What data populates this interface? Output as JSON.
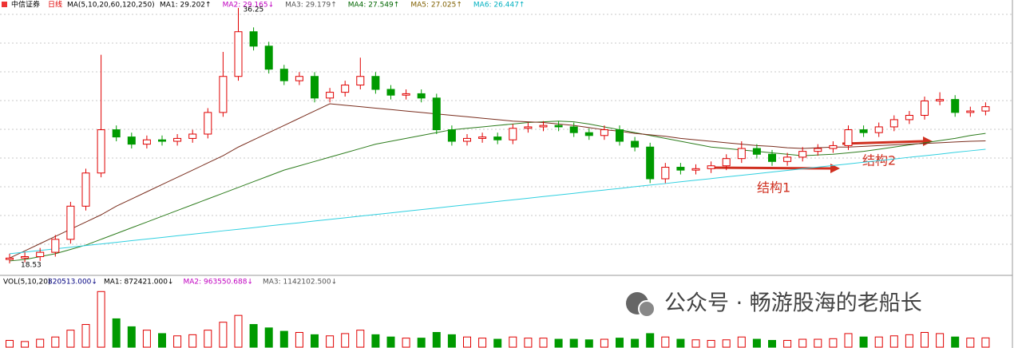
{
  "chart_data": {
    "type": "candlestick",
    "stock_name": "中信证券",
    "period": "日线",
    "ma_params": "MA(5,10,20,60,120,250)",
    "ma_labels": [
      "MA1: 29.202↑",
      "MA2: 29.165↓",
      "MA3: 29.179↑",
      "MA4: 27.549↑",
      "MA5: 27.025↑",
      "MA6: 26.447↑"
    ],
    "ma_label_colors": [
      "#000000",
      "#c000c0",
      "#555555",
      "#006600",
      "#806000",
      "#00b0c0"
    ],
    "annotations": [
      "36.25",
      "18.53",
      "结构1",
      "结构2"
    ],
    "volume_header": "VOL(5,10,20)",
    "volume_value_label": "820513.000↓",
    "volume_ma_labels": [
      "MA1: 872421.000↓",
      "MA2: 963550.688↓",
      "MA3: 1142102.500↓"
    ],
    "watermark": "公众号 · 畅游股海的老船长",
    "up_color": "#e00000",
    "down_color": "#009a00",
    "ylim": [
      17.7,
      36.8
    ],
    "volume_ylim": [
      0,
      5200000
    ],
    "open": [
      18.8,
      18.9,
      19.0,
      19.3,
      20.2,
      22.5,
      24.8,
      27.8,
      27.3,
      26.8,
      27.1,
      27.0,
      27.2,
      27.5,
      29.0,
      31.5,
      34.6,
      33.6,
      32.0,
      31.2,
      31.5,
      30.0,
      30.4,
      30.9,
      31.5,
      30.6,
      30.2,
      30.3,
      30.0,
      27.8,
      27.0,
      27.2,
      27.3,
      27.1,
      27.9,
      28.0,
      28.1,
      28.0,
      27.6,
      27.4,
      27.8,
      27.0,
      26.6,
      24.4,
      25.2,
      25.0,
      25.1,
      25.3,
      25.8,
      26.5,
      26.1,
      25.6,
      25.9,
      26.3,
      26.5,
      26.7,
      27.8,
      27.6,
      28.0,
      28.5,
      28.8,
      29.8,
      29.9,
      29.0,
      29.1
    ],
    "high": [
      19.2,
      19.3,
      19.6,
      20.5,
      22.8,
      25.1,
      33.0,
      28.1,
      27.6,
      27.4,
      27.4,
      27.5,
      27.8,
      29.3,
      33.2,
      36.25,
      34.9,
      33.9,
      32.3,
      31.8,
      31.8,
      30.7,
      31.2,
      32.8,
      31.8,
      30.9,
      30.6,
      30.6,
      30.3,
      28.1,
      27.5,
      27.6,
      27.6,
      28.2,
      28.3,
      28.4,
      28.4,
      28.3,
      27.9,
      28.1,
      28.1,
      27.3,
      26.9,
      25.5,
      25.5,
      25.4,
      25.6,
      26.1,
      27.0,
      26.8,
      26.4,
      26.2,
      26.6,
      26.8,
      27.0,
      28.1,
      28.1,
      28.3,
      28.8,
      29.1,
      30.1,
      30.4,
      30.2,
      29.4,
      29.7
    ],
    "low": [
      18.53,
      18.6,
      18.7,
      19.0,
      19.9,
      22.2,
      24.5,
      27.0,
      26.5,
      26.5,
      26.7,
      26.7,
      26.9,
      27.2,
      28.7,
      31.2,
      33.3,
      31.7,
      30.9,
      30.9,
      29.7,
      29.7,
      30.1,
      30.6,
      30.3,
      29.9,
      29.9,
      29.7,
      27.5,
      26.7,
      26.7,
      26.9,
      26.8,
      26.8,
      27.6,
      27.7,
      27.7,
      27.3,
      27.1,
      27.1,
      26.7,
      26.3,
      24.1,
      24.1,
      24.7,
      24.7,
      24.8,
      25.0,
      25.5,
      25.8,
      25.3,
      25.3,
      25.6,
      26.0,
      26.2,
      26.4,
      27.3,
      27.3,
      27.7,
      28.2,
      28.5,
      29.5,
      28.7,
      28.7,
      28.8
    ],
    "close": [
      18.9,
      19.0,
      19.3,
      20.2,
      22.5,
      24.8,
      27.8,
      27.3,
      26.8,
      27.1,
      27.0,
      27.2,
      27.5,
      29.0,
      31.5,
      34.6,
      33.6,
      32.0,
      31.2,
      31.5,
      30.0,
      30.4,
      30.9,
      31.5,
      30.6,
      30.2,
      30.3,
      30.0,
      27.8,
      27.0,
      27.2,
      27.3,
      27.1,
      27.9,
      28.0,
      28.1,
      28.0,
      27.6,
      27.4,
      27.8,
      27.0,
      26.6,
      24.4,
      25.2,
      25.0,
      25.1,
      25.3,
      25.8,
      26.5,
      26.1,
      25.6,
      25.9,
      26.3,
      26.5,
      26.7,
      27.8,
      27.6,
      28.0,
      28.5,
      28.8,
      29.8,
      29.9,
      29.0,
      29.1,
      29.4
    ],
    "volume": [
      600000,
      500000,
      700000,
      900000,
      1500000,
      2000000,
      4900000,
      2500000,
      1800000,
      1500000,
      1200000,
      1000000,
      1100000,
      1500000,
      2200000,
      2800000,
      2000000,
      1700000,
      1400000,
      1300000,
      1100000,
      1000000,
      1200000,
      1500000,
      1100000,
      900000,
      800000,
      800000,
      1300000,
      1100000,
      900000,
      800000,
      700000,
      900000,
      800000,
      800000,
      700000,
      700000,
      650000,
      700000,
      800000,
      700000,
      1200000,
      900000,
      700000,
      650000,
      600000,
      650000,
      900000,
      700000,
      600000,
      600000,
      700000,
      700000,
      750000,
      1200000,
      900000,
      900000,
      1000000,
      1100000,
      1300000,
      1200000,
      900000,
      800000,
      820513
    ],
    "ma_series": [
      {
        "color": "#2e7d1e",
        "values": [
          18.7,
          18.8,
          19.0,
          19.2,
          19.5,
          19.8,
          20.2,
          20.6,
          21.0,
          21.4,
          21.8,
          22.2,
          22.6,
          23.0,
          23.4,
          23.8,
          24.2,
          24.6,
          25.0,
          25.3,
          25.6,
          25.9,
          26.2,
          26.5,
          26.8,
          27.0,
          27.2,
          27.4,
          27.6,
          27.8,
          27.9,
          28.0,
          28.1,
          28.2,
          28.3,
          28.35,
          28.4,
          28.35,
          28.2,
          28.0,
          27.8,
          27.6,
          27.4,
          27.2,
          27.0,
          26.8,
          26.6,
          26.5,
          26.4,
          26.3,
          26.2,
          26.1,
          26.0,
          26.05,
          26.1,
          26.2,
          26.3,
          26.45,
          26.6,
          26.75,
          26.9,
          27.05,
          27.2,
          27.4,
          27.55
        ]
      },
      {
        "color": "#7a2e1e",
        "values": [
          18.9,
          19.4,
          19.9,
          20.4,
          20.9,
          21.4,
          21.9,
          22.5,
          23.0,
          23.5,
          24.0,
          24.5,
          25.0,
          25.5,
          26.0,
          26.6,
          27.1,
          27.6,
          28.1,
          28.6,
          29.1,
          29.6,
          29.5,
          29.4,
          29.3,
          29.2,
          29.1,
          29.0,
          28.9,
          28.8,
          28.7,
          28.6,
          28.5,
          28.4,
          28.35,
          28.3,
          28.2,
          28.1,
          27.95,
          27.8,
          27.7,
          27.55,
          27.45,
          27.35,
          27.2,
          27.1,
          27.0,
          26.9,
          26.8,
          26.7,
          26.65,
          26.55,
          26.5,
          26.55,
          26.6,
          26.6,
          26.65,
          26.7,
          26.75,
          26.8,
          26.85,
          26.9,
          26.95,
          27.0,
          27.03
        ]
      },
      {
        "color": "#30d0e0",
        "values": [
          19.2,
          19.31,
          19.43,
          19.54,
          19.65,
          19.77,
          19.88,
          19.99,
          20.11,
          20.22,
          20.33,
          20.45,
          20.56,
          20.67,
          20.79,
          20.9,
          21.01,
          21.13,
          21.24,
          21.35,
          21.47,
          21.58,
          21.69,
          21.81,
          21.92,
          22.03,
          22.15,
          22.26,
          22.37,
          22.49,
          22.6,
          22.71,
          22.83,
          22.94,
          23.05,
          23.17,
          23.28,
          23.39,
          23.51,
          23.62,
          23.73,
          23.85,
          23.96,
          24.07,
          24.19,
          24.3,
          24.41,
          24.53,
          24.64,
          24.75,
          24.87,
          24.98,
          25.09,
          25.21,
          25.32,
          25.43,
          25.55,
          25.66,
          25.77,
          25.89,
          26.0,
          26.11,
          26.23,
          26.34,
          26.45
        ]
      }
    ]
  }
}
